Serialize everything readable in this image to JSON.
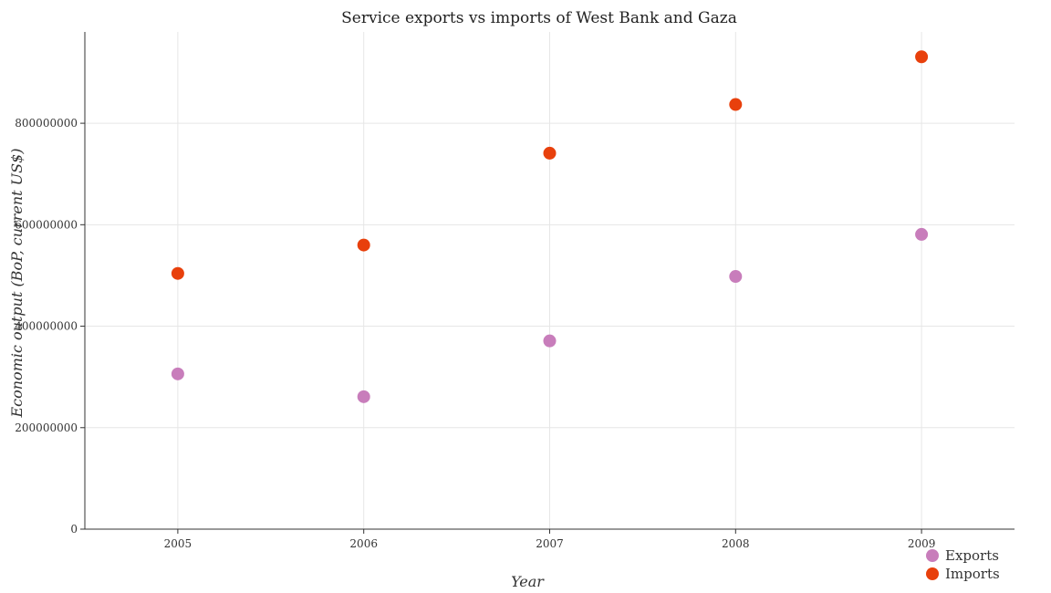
{
  "chart_data": {
    "type": "scatter",
    "title": "Service exports vs imports of West Bank and Gaza",
    "xlabel": "Year",
    "ylabel": "Economic output (BoP, current US$)",
    "categories": [
      "2005",
      "2006",
      "2007",
      "2008",
      "2009"
    ],
    "ylim": [
      0,
      980000000
    ],
    "yticks": [
      0,
      200000000,
      400000000,
      600000000,
      800000000
    ],
    "ytick_labels": [
      "0",
      "200000000",
      "400000000",
      "600000000",
      "800000000"
    ],
    "grid": true,
    "legend_position": "bottom-right",
    "series": [
      {
        "name": "Exports",
        "color": "#c87dbb",
        "values": [
          306000000,
          261000000,
          371000000,
          498000000,
          581000000
        ]
      },
      {
        "name": "Imports",
        "color": "#e8400c",
        "values": [
          504000000,
          560000000,
          741000000,
          837000000,
          931000000
        ]
      }
    ]
  }
}
